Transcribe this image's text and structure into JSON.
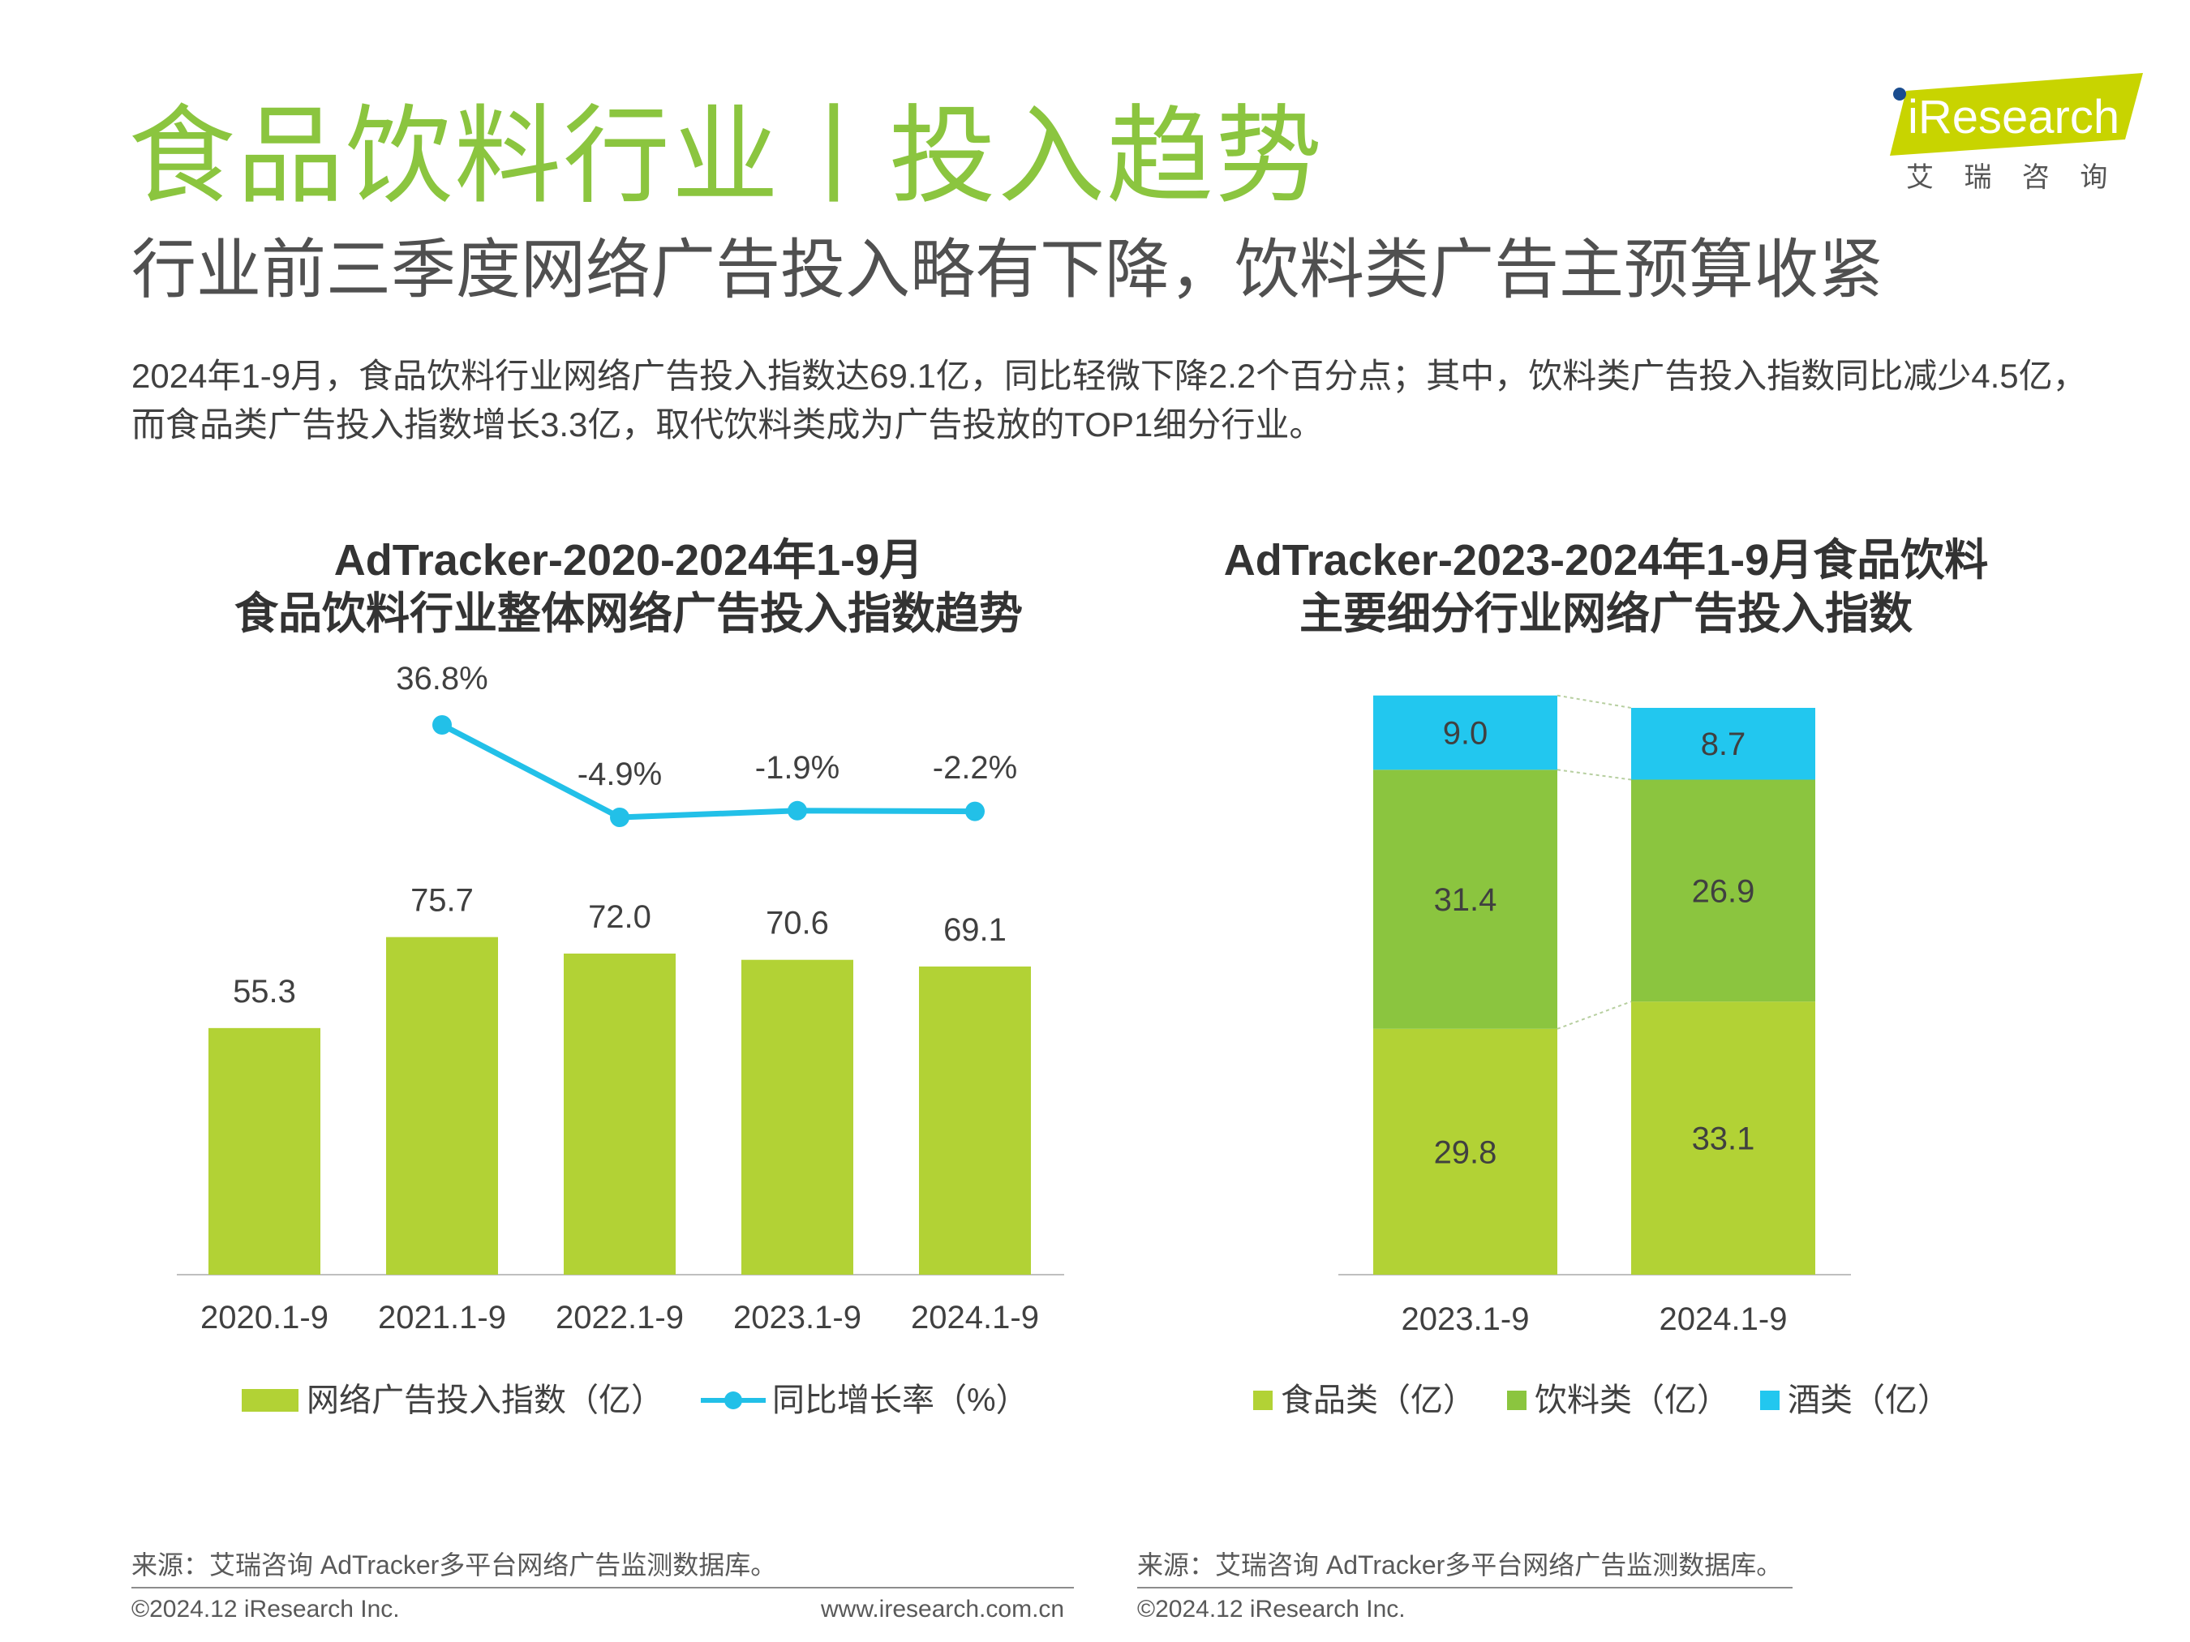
{
  "title": "食品饮料行业丨投入趋势",
  "subtitle": "行业前三季度网络广告投入略有下降，饮料类广告主预算收紧",
  "summary_lines": [
    "2024年1-9月，食品饮料行业网络广告投入指数达69.1亿，同比轻微下降2.2个百分点；其中，饮料类广告投入指数同比减少4.5亿，",
    "而食品类广告投入指数增长3.3亿，取代饮料类成为广告投放的TOP1细分行业。"
  ],
  "logo": {
    "text": "iResearch",
    "subtext": "艾 瑞 咨 询",
    "color": "#c8d400",
    "dot_color": "#1a4d8f"
  },
  "chart_data": [
    {
      "type": "bar",
      "title_lines": [
        "AdTracker-2020-2024年1-9月",
        "食品饮料行业整体网络广告投入指数趋势"
      ],
      "categories": [
        "2020.1-9",
        "2021.1-9",
        "2022.1-9",
        "2023.1-9",
        "2024.1-9"
      ],
      "series": [
        {
          "name": "网络广告投入指数（亿）",
          "type": "bar",
          "color": "#b2d235",
          "values": [
            55.3,
            75.7,
            72.0,
            70.6,
            69.1
          ],
          "labels": [
            "55.3",
            "75.7",
            "72.0",
            "70.6",
            "69.1"
          ]
        },
        {
          "name": "同比增长率（%）",
          "type": "line",
          "color": "#22c0e8",
          "values": [
            null,
            36.8,
            -4.9,
            -1.9,
            -2.2
          ],
          "labels": [
            "",
            "36.8%",
            "-4.9%",
            "-1.9%",
            "-2.2%"
          ]
        }
      ],
      "legend": [
        "网络广告投入指数（亿）",
        "同比增长率（%）"
      ],
      "legend_position": "bottom"
    },
    {
      "type": "stacked-bar",
      "title_lines": [
        "AdTracker-2023-2024年1-9月食品饮料",
        "主要细分行业网络广告投入指数"
      ],
      "categories": [
        "2023.1-9",
        "2024.1-9"
      ],
      "series": [
        {
          "name": "食品类（亿）",
          "color": "#b2d235",
          "values": [
            29.8,
            33.1
          ],
          "labels": [
            "29.8",
            "33.1"
          ]
        },
        {
          "name": "饮料类（亿）",
          "color": "#8bc53f",
          "values": [
            31.4,
            26.9
          ],
          "labels": [
            "31.4",
            "26.9"
          ]
        },
        {
          "name": "酒类（亿）",
          "color": "#22c7ef",
          "values": [
            9.0,
            8.7
          ],
          "labels": [
            "9.0",
            "8.7"
          ]
        }
      ],
      "legend": [
        "食品类（亿）",
        "饮料类（亿）",
        "酒类（亿）"
      ],
      "legend_position": "bottom"
    }
  ],
  "footer": {
    "source_left": "来源：艾瑞咨询 AdTracker多平台网络广告监测数据库。",
    "source_right": "来源：艾瑞咨询 AdTracker多平台网络广告监测数据库。",
    "copyright_left": "©2024.12 iResearch Inc.",
    "url": "www.iresearch.com.cn",
    "copyright_right": "©2024.12 iResearch Inc."
  }
}
